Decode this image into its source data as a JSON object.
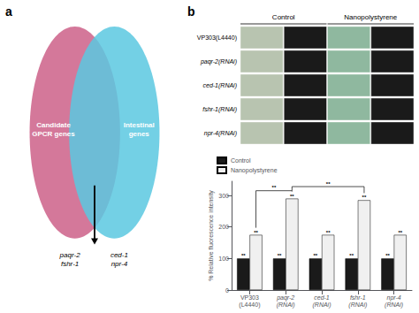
{
  "chart_data": [
    {
      "type": "venn",
      "title": "a",
      "series": [
        {
          "name": "Candidate\nGPCR genes",
          "color": "#D4789A"
        },
        {
          "name": "Intestinal\ngenes",
          "color": "#5BC8E0"
        }
      ],
      "annotations": [
        "paqr-2\nfshr-1",
        "ced-1\nnpr-4"
      ]
    },
    {
      "type": "image_grid",
      "title": "b",
      "annotations": [
        "Control",
        "Nanopolystyrene"
      ],
      "categories": [
        "VP303(L4440)",
        "paqr-2(RNAi)",
        "ced-1(RNAi)",
        "fshr-1(RNAi)",
        "npr-4(RNAi)"
      ],
      "colors": [
        "#b8c4b0",
        "#1a1a1a",
        "#8fb89f",
        "#1a1a1a"
      ]
    },
    {
      "type": "bar",
      "categories": [
        "VP303\n(L4440)",
        "paqr-2\n(RNAi)",
        "ced-1\n(RNAi)",
        "fshr-1\n(RNAi)",
        "npr-4\n(RNAi)"
      ],
      "series": [
        {
          "name": "Control",
          "color": "#1a1a1a",
          "values": [
            100,
            100,
            100,
            100,
            100
          ]
        },
        {
          "name": "Nanopolystyrene",
          "color": "#f0f0f0",
          "values": [
            175,
            290,
            175,
            285,
            175
          ]
        }
      ],
      "ylabel": "% Relative fluorescence intensity",
      "ylim": [
        0,
        345
      ],
      "yticks": [
        0,
        100,
        200,
        300
      ],
      "grid": false,
      "legend": "upper left",
      "annotations": [
        {
          "text": "**",
          "series": "Control",
          "categories": [
            "VP303\n(L4440)",
            "paqr-2\n(RNAi)",
            "ced-1\n(RNAi)",
            "fshr-1\n(RNAi)",
            "npr-4\n(RNAi)"
          ]
        },
        {
          "text": "**",
          "series": "Nanopolystyrene",
          "categories": [
            "VP303\n(L4440)",
            "paqr-2\n(RNAi)",
            "ced-1\n(RNAi)",
            "fshr-1\n(RNAi)",
            "npr-4\n(RNAi)"
          ]
        },
        {
          "text": "**",
          "series": "Nanopolystyrene",
          "categories": [
            "VP303\n(L4440)",
            "paqr-2\n(RNAi)"
          ],
          "y": 315
        },
        {
          "text": "**",
          "series": "Nanopolystyrene",
          "categories": [
            "paqr-2\n(RNAi)",
            "fshr-1\n(RNAi)"
          ],
          "y": 328
        }
      ]
    }
  ]
}
